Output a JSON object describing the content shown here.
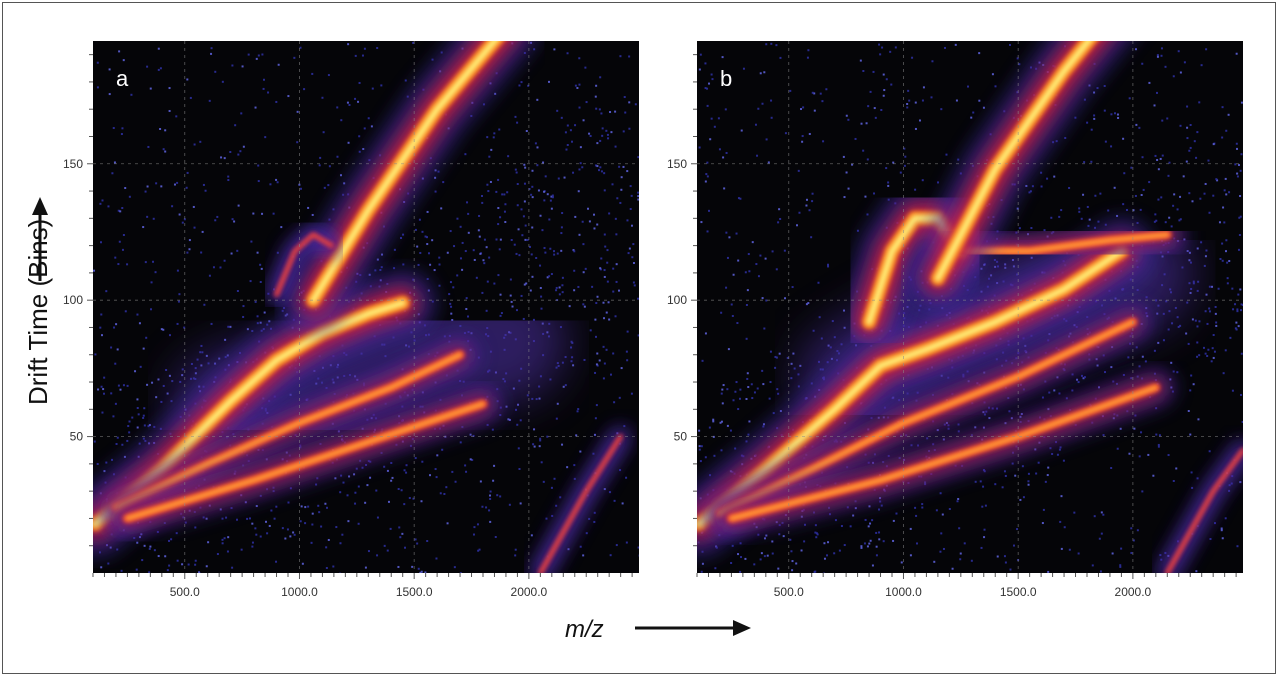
{
  "chart_data": [
    {
      "type": "heatmap",
      "panel_label": "a",
      "x_ticks": [
        "500.0",
        "1000.0",
        "1500.0",
        "2000.0"
      ],
      "y_ticks": [
        "50",
        "100",
        "150"
      ],
      "xlim": [
        100,
        2480
      ],
      "ylim": [
        0,
        195
      ],
      "grid": true,
      "features": [
        {
          "shape": "band",
          "points": [
            [
              110,
              18
            ],
            [
              400,
              38
            ],
            [
              700,
              63
            ],
            [
              900,
              78
            ],
            [
              1100,
              88
            ],
            [
              1300,
              95
            ],
            [
              1450,
              99
            ]
          ],
          "intensity": "high"
        },
        {
          "shape": "band",
          "points": [
            [
              200,
              24
            ],
            [
              600,
              40
            ],
            [
              1000,
              55
            ],
            [
              1400,
              68
            ],
            [
              1700,
              80
            ]
          ],
          "intensity": "medium"
        },
        {
          "shape": "band",
          "points": [
            [
              250,
              20
            ],
            [
              800,
              34
            ],
            [
              1300,
              48
            ],
            [
              1800,
              62
            ]
          ],
          "intensity": "medium"
        },
        {
          "shape": "band",
          "points": [
            [
              1060,
              100
            ],
            [
              1300,
              133
            ],
            [
              1600,
              170
            ],
            [
              1900,
              200
            ]
          ],
          "intensity": "high"
        },
        {
          "shape": "arc",
          "points": [
            [
              900,
              102
            ],
            [
              980,
              118
            ],
            [
              1060,
              124
            ],
            [
              1140,
              120
            ]
          ],
          "intensity": "low"
        },
        {
          "shape": "band",
          "points": [
            [
              2050,
              0
            ],
            [
              2250,
              30
            ],
            [
              2400,
              50
            ]
          ],
          "intensity": "low"
        }
      ]
    },
    {
      "type": "heatmap",
      "panel_label": "b",
      "x_ticks": [
        "500.0",
        "1000.0",
        "1500.0",
        "2000.0"
      ],
      "y_ticks": [
        "50",
        "100",
        "150"
      ],
      "xlim": [
        100,
        2480
      ],
      "ylim": [
        0,
        195
      ],
      "grid": true,
      "features": [
        {
          "shape": "band",
          "points": [
            [
              110,
              18
            ],
            [
              400,
              38
            ],
            [
              700,
              60
            ],
            [
              900,
              76
            ],
            [
              1100,
              82
            ],
            [
              1400,
              92
            ],
            [
              1700,
              104
            ],
            [
              1950,
              118
            ]
          ],
          "intensity": "high"
        },
        {
          "shape": "band",
          "points": [
            [
              200,
              22
            ],
            [
              600,
              38
            ],
            [
              1000,
              55
            ],
            [
              1500,
              72
            ],
            [
              2000,
              92
            ]
          ],
          "intensity": "medium"
        },
        {
          "shape": "band",
          "points": [
            [
              250,
              20
            ],
            [
              900,
              34
            ],
            [
              1500,
              50
            ],
            [
              2100,
              68
            ]
          ],
          "intensity": "medium"
        },
        {
          "shape": "band",
          "points": [
            [
              850,
              92
            ],
            [
              950,
              118
            ],
            [
              1050,
              130
            ],
            [
              1150,
              130
            ],
            [
              1250,
              118
            ]
          ],
          "intensity": "high"
        },
        {
          "shape": "band",
          "points": [
            [
              1250,
              118
            ],
            [
              1550,
              118
            ],
            [
              1900,
              122
            ],
            [
              2150,
              124
            ]
          ],
          "intensity": "medium"
        },
        {
          "shape": "band",
          "points": [
            [
              1150,
              108
            ],
            [
              1400,
              148
            ],
            [
              1700,
              184
            ],
            [
              1950,
              210
            ]
          ],
          "intensity": "high"
        },
        {
          "shape": "band",
          "points": [
            [
              2150,
              0
            ],
            [
              2350,
              30
            ],
            [
              2480,
              45
            ]
          ],
          "intensity": "low"
        }
      ]
    }
  ],
  "axes": {
    "y_title": "Drift Time (Bins)",
    "x_title": "m/z"
  }
}
